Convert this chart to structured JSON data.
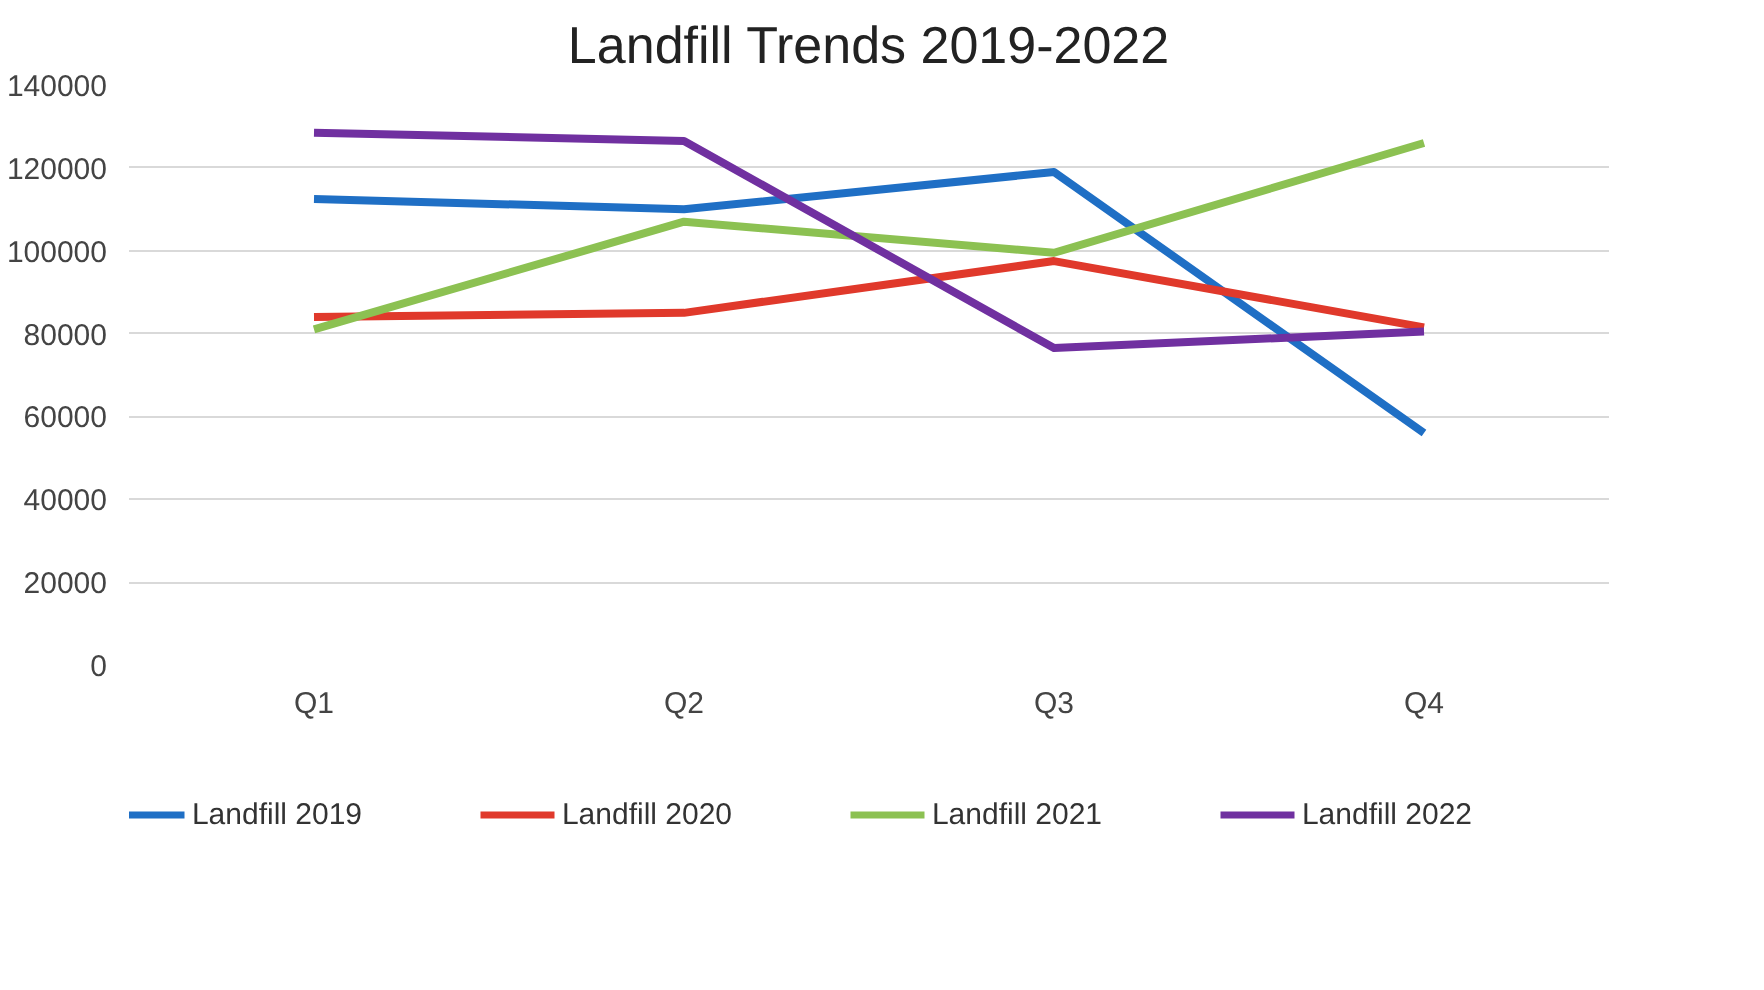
{
  "chart_data": {
    "type": "line",
    "title": "Landfill Trends 2019-2022",
    "categories": [
      "Q1",
      "Q2",
      "Q3",
      "Q4"
    ],
    "series": [
      {
        "name": "Landfill 2019",
        "color": "#1f6fc5",
        "values": [
          112500,
          110000,
          119000,
          56000
        ]
      },
      {
        "name": "Landfill 2020",
        "color": "#e0392b",
        "values": [
          84000,
          85000,
          97500,
          81500
        ]
      },
      {
        "name": "Landfill 2021",
        "color": "#8cc152",
        "values": [
          81000,
          107000,
          99500,
          126000
        ]
      },
      {
        "name": "Landfill 2022",
        "color": "#7030a0",
        "values": [
          128500,
          126500,
          76500,
          80500
        ]
      }
    ],
    "ylim": [
      0,
      140000
    ],
    "yticks": [
      0,
      20000,
      40000,
      60000,
      80000,
      100000,
      120000,
      140000
    ],
    "grid": "y",
    "legend": "bottom",
    "marker": "none",
    "line_style": "solid"
  }
}
